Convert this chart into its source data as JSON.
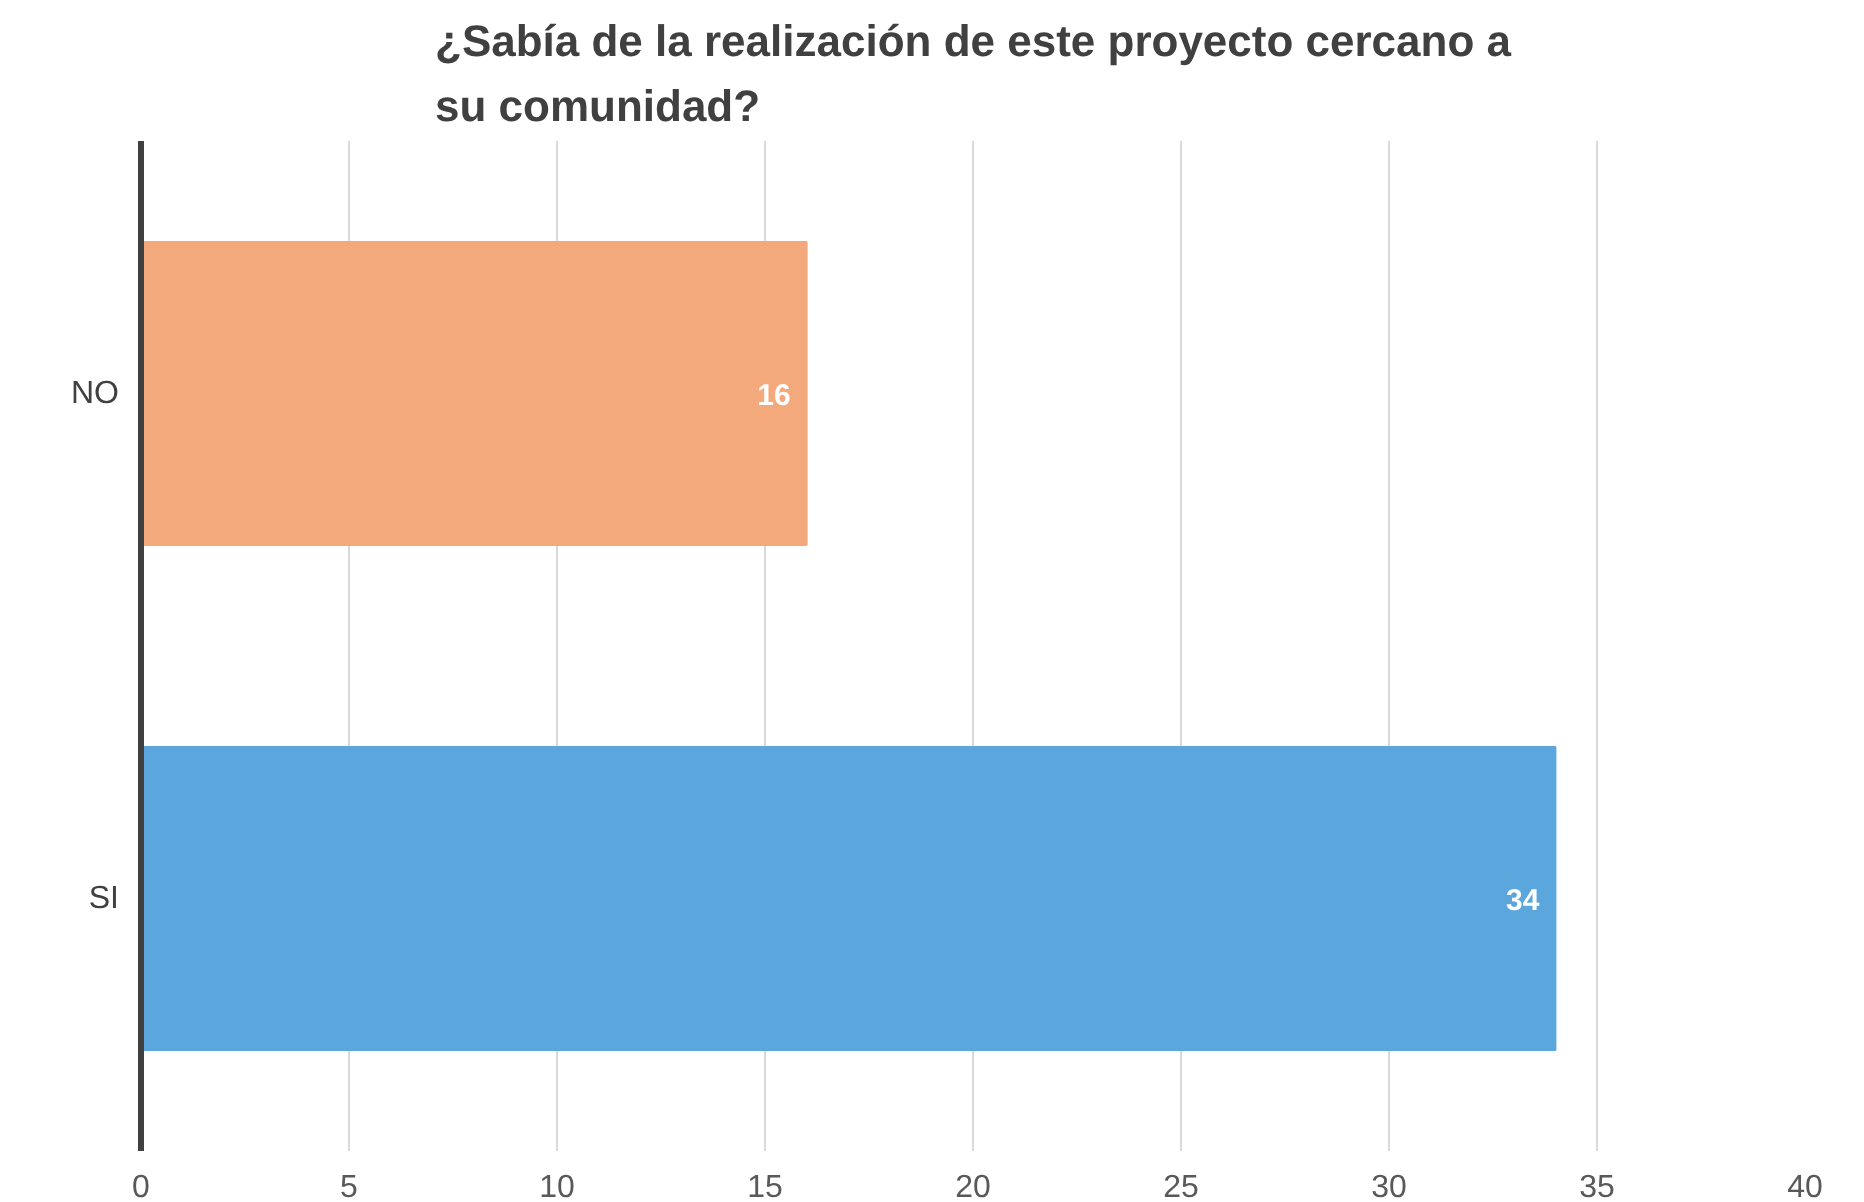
{
  "chart_data": {
    "type": "bar",
    "orientation": "horizontal",
    "title": "¿Sabía de la realización de este proyecto cercano a su comunidad?",
    "categories": [
      "NO",
      "SI"
    ],
    "values": [
      16,
      34
    ],
    "colors": [
      "#f4a97c",
      "#5ba6dd"
    ],
    "xlim": [
      0,
      40
    ],
    "xticks": [
      0,
      5,
      10,
      15,
      20,
      25,
      30,
      35,
      40
    ],
    "grid": "x",
    "data_labels": true
  }
}
